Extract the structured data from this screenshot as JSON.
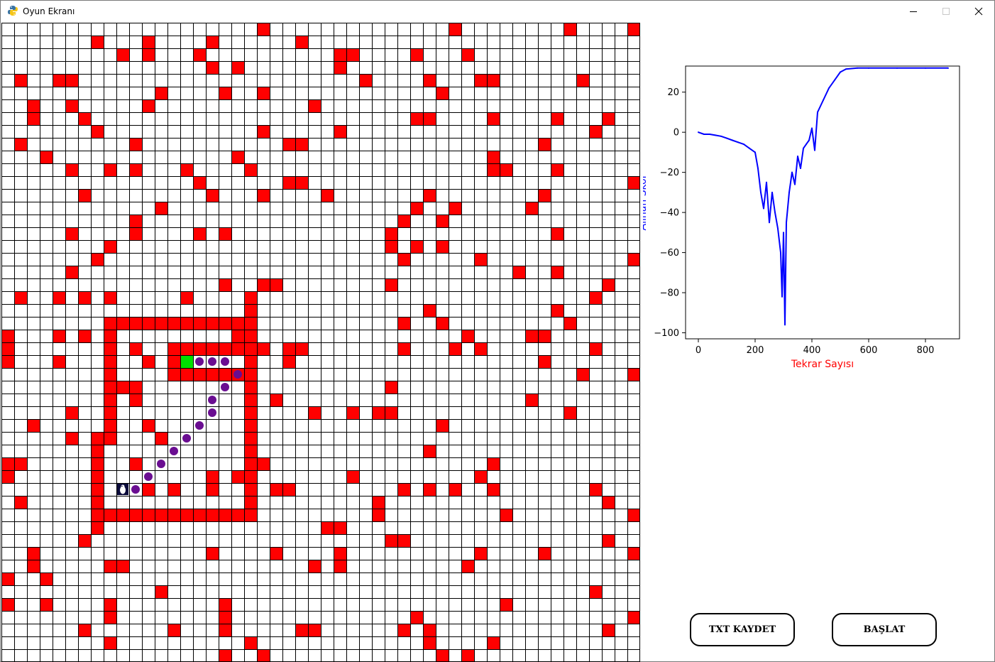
{
  "window": {
    "title": "Oyun Ekranı",
    "app_icon": "python-icon",
    "controls": [
      "minimize-icon",
      "maximize-icon",
      "close-icon"
    ]
  },
  "colors": {
    "obstacle": "#ff0000",
    "empty": "#ffffff",
    "grid_line": "#000000",
    "goal": "#00e000",
    "path": "#6a0d91",
    "agent": "#0b0b3b",
    "series": "#0000ff",
    "xlabel": "#ff0000",
    "ylabel": "#0000ff"
  },
  "grid": {
    "rows": 50,
    "cols": 50,
    "obstacles": [
      [
        0,
        20
      ],
      [
        0,
        35
      ],
      [
        0,
        44
      ],
      [
        0,
        49
      ],
      [
        1,
        7
      ],
      [
        1,
        11
      ],
      [
        1,
        16
      ],
      [
        1,
        23
      ],
      [
        2,
        9
      ],
      [
        2,
        11
      ],
      [
        2,
        15
      ],
      [
        2,
        26
      ],
      [
        2,
        27
      ],
      [
        2,
        32
      ],
      [
        2,
        36
      ],
      [
        3,
        16
      ],
      [
        3,
        18
      ],
      [
        3,
        26
      ],
      [
        4,
        1
      ],
      [
        4,
        4
      ],
      [
        4,
        5
      ],
      [
        4,
        28
      ],
      [
        4,
        33
      ],
      [
        4,
        37
      ],
      [
        4,
        38
      ],
      [
        4,
        45
      ],
      [
        5,
        12
      ],
      [
        5,
        17
      ],
      [
        5,
        20
      ],
      [
        5,
        34
      ],
      [
        6,
        2
      ],
      [
        6,
        5
      ],
      [
        6,
        11
      ],
      [
        6,
        24
      ],
      [
        7,
        2
      ],
      [
        7,
        6
      ],
      [
        7,
        32
      ],
      [
        7,
        33
      ],
      [
        7,
        38
      ],
      [
        7,
        43
      ],
      [
        7,
        47
      ],
      [
        8,
        7
      ],
      [
        8,
        20
      ],
      [
        8,
        26
      ],
      [
        8,
        46
      ],
      [
        9,
        1
      ],
      [
        9,
        10
      ],
      [
        9,
        22
      ],
      [
        9,
        23
      ],
      [
        9,
        42
      ],
      [
        10,
        3
      ],
      [
        10,
        18
      ],
      [
        10,
        38
      ],
      [
        11,
        5
      ],
      [
        11,
        8
      ],
      [
        11,
        10
      ],
      [
        11,
        14
      ],
      [
        11,
        19
      ],
      [
        11,
        38
      ],
      [
        11,
        39
      ],
      [
        11,
        43
      ],
      [
        12,
        15
      ],
      [
        12,
        22
      ],
      [
        12,
        23
      ],
      [
        12,
        49
      ],
      [
        13,
        6
      ],
      [
        13,
        16
      ],
      [
        13,
        20
      ],
      [
        13,
        25
      ],
      [
        13,
        33
      ],
      [
        13,
        42
      ],
      [
        14,
        12
      ],
      [
        14,
        32
      ],
      [
        14,
        35
      ],
      [
        14,
        41
      ],
      [
        15,
        10
      ],
      [
        15,
        31
      ],
      [
        15,
        34
      ],
      [
        16,
        5
      ],
      [
        16,
        10
      ],
      [
        16,
        15
      ],
      [
        16,
        17
      ],
      [
        16,
        30
      ],
      [
        16,
        43
      ],
      [
        17,
        8
      ],
      [
        17,
        30
      ],
      [
        17,
        32
      ],
      [
        17,
        34
      ],
      [
        18,
        7
      ],
      [
        18,
        31
      ],
      [
        18,
        37
      ],
      [
        18,
        49
      ],
      [
        19,
        5
      ],
      [
        19,
        40
      ],
      [
        19,
        43
      ],
      [
        20,
        17
      ],
      [
        20,
        20
      ],
      [
        20,
        21
      ],
      [
        20,
        30
      ],
      [
        20,
        47
      ],
      [
        21,
        1
      ],
      [
        21,
        4
      ],
      [
        21,
        6
      ],
      [
        21,
        8
      ],
      [
        21,
        14
      ],
      [
        21,
        46
      ],
      [
        22,
        33
      ],
      [
        22,
        43
      ],
      [
        23,
        31
      ],
      [
        23,
        34
      ],
      [
        23,
        44
      ],
      [
        24,
        0
      ],
      [
        24,
        4
      ],
      [
        24,
        6
      ],
      [
        24,
        36
      ],
      [
        24,
        41
      ],
      [
        24,
        42
      ],
      [
        25,
        0
      ],
      [
        25,
        10
      ],
      [
        25,
        20
      ],
      [
        25,
        22
      ],
      [
        25,
        23
      ],
      [
        25,
        31
      ],
      [
        25,
        35
      ],
      [
        25,
        37
      ],
      [
        25,
        46
      ],
      [
        26,
        0
      ],
      [
        26,
        4
      ],
      [
        26,
        11
      ],
      [
        26,
        22
      ],
      [
        26,
        42
      ],
      [
        27,
        45
      ],
      [
        27,
        49
      ],
      [
        28,
        30
      ],
      [
        29,
        10
      ],
      [
        29,
        21
      ],
      [
        29,
        41
      ],
      [
        30,
        5
      ],
      [
        30,
        24
      ],
      [
        30,
        27
      ],
      [
        30,
        29
      ],
      [
        30,
        30
      ],
      [
        30,
        44
      ],
      [
        31,
        2
      ],
      [
        31,
        11
      ],
      [
        31,
        34
      ],
      [
        32,
        5
      ],
      [
        32,
        12
      ],
      [
        33,
        33
      ],
      [
        34,
        0
      ],
      [
        34,
        1
      ],
      [
        34,
        10
      ],
      [
        34,
        20
      ],
      [
        34,
        38
      ],
      [
        35,
        0
      ],
      [
        35,
        16
      ],
      [
        35,
        18
      ],
      [
        35,
        27
      ],
      [
        35,
        37
      ],
      [
        36,
        11
      ],
      [
        36,
        13
      ],
      [
        36,
        16
      ],
      [
        36,
        21
      ],
      [
        36,
        22
      ],
      [
        36,
        31
      ],
      [
        36,
        33
      ],
      [
        36,
        35
      ],
      [
        36,
        38
      ],
      [
        36,
        46
      ],
      [
        37,
        1
      ],
      [
        37,
        29
      ],
      [
        37,
        47
      ],
      [
        38,
        29
      ],
      [
        38,
        39
      ],
      [
        38,
        49
      ],
      [
        39,
        25
      ],
      [
        39,
        26
      ],
      [
        40,
        6
      ],
      [
        40,
        30
      ],
      [
        40,
        31
      ],
      [
        40,
        47
      ],
      [
        41,
        2
      ],
      [
        41,
        16
      ],
      [
        41,
        21
      ],
      [
        41,
        26
      ],
      [
        41,
        37
      ],
      [
        41,
        42
      ],
      [
        41,
        49
      ],
      [
        42,
        2
      ],
      [
        42,
        8
      ],
      [
        42,
        9
      ],
      [
        42,
        24
      ],
      [
        42,
        26
      ],
      [
        42,
        36
      ],
      [
        43,
        0
      ],
      [
        43,
        3
      ],
      [
        44,
        12
      ],
      [
        44,
        46
      ],
      [
        45,
        0
      ],
      [
        45,
        3
      ],
      [
        45,
        8
      ],
      [
        45,
        17
      ],
      [
        45,
        39
      ],
      [
        46,
        8
      ],
      [
        46,
        17
      ],
      [
        46,
        32
      ],
      [
        46,
        49
      ],
      [
        47,
        6
      ],
      [
        47,
        13
      ],
      [
        47,
        17
      ],
      [
        47,
        23
      ],
      [
        47,
        24
      ],
      [
        47,
        31
      ],
      [
        47,
        33
      ],
      [
        47,
        47
      ],
      [
        48,
        8
      ],
      [
        48,
        19
      ],
      [
        48,
        33
      ],
      [
        48,
        38
      ],
      [
        49,
        17
      ],
      [
        49,
        20
      ],
      [
        49,
        34
      ],
      [
        49,
        36
      ]
    ],
    "walls": [
      {
        "row": 23,
        "from": 8,
        "to": 19
      },
      {
        "row": 25,
        "from": 13,
        "to": 20
      },
      {
        "row": 27,
        "from": 13,
        "to": 18
      },
      {
        "row": 28,
        "from": 9,
        "to": 10
      },
      {
        "row": 38,
        "from": 7,
        "to": 19
      },
      {
        "col": 8,
        "from": 23,
        "to": 32
      },
      {
        "col": 7,
        "from": 32,
        "to": 39
      },
      {
        "col": 13,
        "from": 25,
        "to": 27
      },
      {
        "col": 19,
        "from": 21,
        "to": 38
      },
      {
        "col": 18,
        "from": 24,
        "to": 25
      }
    ],
    "goal": [
      26,
      14
    ],
    "agent": [
      36,
      9
    ],
    "path": [
      [
        26,
        15
      ],
      [
        26,
        16
      ],
      [
        26,
        17
      ],
      [
        27,
        18
      ],
      [
        28,
        17
      ],
      [
        29,
        16
      ],
      [
        30,
        16
      ],
      [
        31,
        15
      ],
      [
        32,
        14
      ],
      [
        33,
        13
      ],
      [
        34,
        12
      ],
      [
        35,
        11
      ],
      [
        36,
        10
      ]
    ]
  },
  "chart_data": {
    "type": "line",
    "title": "",
    "xlabel": "Tekrar Sayısı",
    "ylabel": "Alınan Skor",
    "xlim": [
      -45,
      920
    ],
    "ylim": [
      -103,
      33
    ],
    "xticks": [
      0,
      200,
      400,
      600,
      800
    ],
    "yticks": [
      20,
      0,
      -20,
      -40,
      -60,
      -80,
      -100
    ],
    "series": [
      {
        "name": "skor",
        "x": [
          0,
          20,
          40,
          60,
          80,
          100,
          120,
          140,
          160,
          180,
          200,
          210,
          220,
          230,
          240,
          250,
          260,
          270,
          280,
          290,
          295,
          300,
          305,
          310,
          320,
          330,
          340,
          350,
          360,
          370,
          380,
          390,
          400,
          410,
          420,
          440,
          460,
          480,
          500,
          520,
          560,
          600,
          700,
          800,
          880
        ],
        "y": [
          0,
          -1,
          -1,
          -1.5,
          -2,
          -3,
          -4,
          -5,
          -6,
          -8,
          -10,
          -18,
          -30,
          -38,
          -25,
          -45,
          -30,
          -40,
          -48,
          -60,
          -82,
          -50,
          -96,
          -45,
          -30,
          -20,
          -26,
          -12,
          -18,
          -8,
          -6,
          -4,
          2,
          -9,
          10,
          16,
          22,
          26,
          30,
          31.5,
          32,
          32,
          32,
          32,
          32
        ]
      }
    ]
  },
  "buttons": {
    "save_label": "TXT KAYDET",
    "start_label": "BAŞLAT"
  }
}
